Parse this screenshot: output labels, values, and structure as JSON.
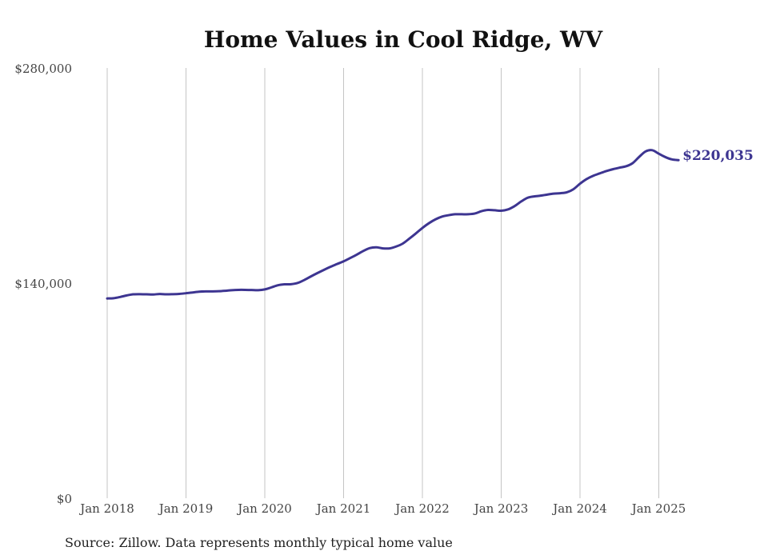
{
  "chart_data": {
    "type": "line",
    "title": "Home Values in Cool Ridge, WV",
    "xlabel": "",
    "ylabel": "",
    "ylim": [
      0,
      280000
    ],
    "y_ticks": [
      {
        "value": 0,
        "label": "$0"
      },
      {
        "value": 140000,
        "label": "$140,000"
      },
      {
        "value": 280000,
        "label": "$280,000"
      }
    ],
    "x_range": [
      "2018-01",
      "2025-07"
    ],
    "x_ticks": [
      {
        "date": "2018-01",
        "label": "Jan 2018"
      },
      {
        "date": "2019-01",
        "label": "Jan 2019"
      },
      {
        "date": "2020-01",
        "label": "Jan 2020"
      },
      {
        "date": "2021-01",
        "label": "Jan 2021"
      },
      {
        "date": "2022-01",
        "label": "Jan 2022"
      },
      {
        "date": "2023-01",
        "label": "Jan 2023"
      },
      {
        "date": "2024-01",
        "label": "Jan 2024"
      },
      {
        "date": "2025-01",
        "label": "Jan 2025"
      }
    ],
    "grid": {
      "vertical": true,
      "horizontal": false
    },
    "line_color": "#3d3591",
    "series": [
      {
        "points": [
          [
            "2018-01",
            130000
          ],
          [
            "2018-02",
            130200
          ],
          [
            "2018-03",
            131000
          ],
          [
            "2018-04",
            132000
          ],
          [
            "2018-05",
            132700
          ],
          [
            "2018-06",
            132800
          ],
          [
            "2018-07",
            132700
          ],
          [
            "2018-08",
            132600
          ],
          [
            "2018-09",
            132900
          ],
          [
            "2018-10",
            132700
          ],
          [
            "2018-11",
            132800
          ],
          [
            "2018-12",
            133000
          ],
          [
            "2019-01",
            133400
          ],
          [
            "2019-02",
            133900
          ],
          [
            "2019-03",
            134400
          ],
          [
            "2019-04",
            134600
          ],
          [
            "2019-05",
            134600
          ],
          [
            "2019-06",
            134700
          ],
          [
            "2019-07",
            135000
          ],
          [
            "2019-08",
            135400
          ],
          [
            "2019-09",
            135600
          ],
          [
            "2019-10",
            135600
          ],
          [
            "2019-11",
            135500
          ],
          [
            "2019-12",
            135400
          ],
          [
            "2020-01",
            135900
          ],
          [
            "2020-02",
            137200
          ],
          [
            "2020-03",
            138600
          ],
          [
            "2020-04",
            139200
          ],
          [
            "2020-05",
            139300
          ],
          [
            "2020-06",
            140100
          ],
          [
            "2020-07",
            142000
          ],
          [
            "2020-08",
            144300
          ],
          [
            "2020-09",
            146500
          ],
          [
            "2020-10",
            148600
          ],
          [
            "2020-11",
            150600
          ],
          [
            "2020-12",
            152400
          ],
          [
            "2021-01",
            154200
          ],
          [
            "2021-02",
            156300
          ],
          [
            "2021-03",
            158500
          ],
          [
            "2021-04",
            160900
          ],
          [
            "2021-05",
            162800
          ],
          [
            "2021-06",
            163300
          ],
          [
            "2021-07",
            162600
          ],
          [
            "2021-08",
            162600
          ],
          [
            "2021-09",
            163800
          ],
          [
            "2021-10",
            165700
          ],
          [
            "2021-11",
            168900
          ],
          [
            "2021-12",
            172300
          ],
          [
            "2022-01",
            175900
          ],
          [
            "2022-02",
            179000
          ],
          [
            "2022-03",
            181500
          ],
          [
            "2022-04",
            183300
          ],
          [
            "2022-05",
            184200
          ],
          [
            "2022-06",
            184800
          ],
          [
            "2022-07",
            184800
          ],
          [
            "2022-08",
            184800
          ],
          [
            "2022-09",
            185300
          ],
          [
            "2022-10",
            186800
          ],
          [
            "2022-11",
            187600
          ],
          [
            "2022-12",
            187400
          ],
          [
            "2023-01",
            187100
          ],
          [
            "2023-02",
            187900
          ],
          [
            "2023-03",
            190000
          ],
          [
            "2023-04",
            193000
          ],
          [
            "2023-05",
            195500
          ],
          [
            "2023-06",
            196400
          ],
          [
            "2023-07",
            196900
          ],
          [
            "2023-08",
            197600
          ],
          [
            "2023-09",
            198200
          ],
          [
            "2023-10",
            198500
          ],
          [
            "2023-11",
            199100
          ],
          [
            "2023-12",
            201100
          ],
          [
            "2024-01",
            204700
          ],
          [
            "2024-02",
            207700
          ],
          [
            "2024-03",
            209800
          ],
          [
            "2024-04",
            211400
          ],
          [
            "2024-05",
            212900
          ],
          [
            "2024-06",
            214100
          ],
          [
            "2024-07",
            215100
          ],
          [
            "2024-08",
            216000
          ],
          [
            "2024-09",
            218000
          ],
          [
            "2024-10",
            222100
          ],
          [
            "2024-11",
            225700
          ],
          [
            "2024-12",
            226500
          ],
          [
            "2025-01",
            224200
          ],
          [
            "2025-02",
            222000
          ],
          [
            "2025-03",
            220500
          ],
          [
            "2025-04",
            220035
          ]
        ]
      }
    ],
    "end_label": "$220,035",
    "source": "Source: Zillow. Data represents monthly typical home value"
  }
}
